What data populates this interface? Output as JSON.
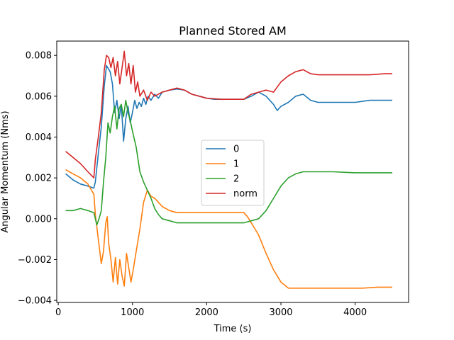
{
  "chart_data": {
    "type": "line",
    "title": "Planned Stored AM",
    "xlabel": "Time (s)",
    "ylabel": "Angular Momentum (Nms)",
    "xlim": [
      -20,
      4720
    ],
    "ylim": [
      -0.0041,
      0.0087
    ],
    "xticks": [
      0,
      1000,
      2000,
      3000,
      4000
    ],
    "xtick_labels": [
      "0",
      "1000",
      "2000",
      "3000",
      "4000"
    ],
    "yticks": [
      -0.004,
      -0.002,
      0.0,
      0.002,
      0.004,
      0.006,
      0.008
    ],
    "ytick_labels": [
      "−0.004",
      "−0.002",
      "0.000",
      "0.002",
      "0.004",
      "0.006",
      "0.008"
    ],
    "grid": false,
    "legend_position": "center",
    "series": [
      {
        "name": "0",
        "color": "#1f77b4",
        "points": [
          [
            100,
            0.0022
          ],
          [
            200,
            0.0019
          ],
          [
            300,
            0.0017
          ],
          [
            400,
            0.0016
          ],
          [
            480,
            0.0015
          ],
          [
            500,
            0.0018
          ],
          [
            540,
            0.0032
          ],
          [
            580,
            0.0045
          ],
          [
            620,
            0.0065
          ],
          [
            650,
            0.0075
          ],
          [
            700,
            0.0072
          ],
          [
            730,
            0.0066
          ],
          [
            760,
            0.0052
          ],
          [
            790,
            0.0058
          ],
          [
            820,
            0.0049
          ],
          [
            850,
            0.0056
          ],
          [
            880,
            0.0038
          ],
          [
            910,
            0.0049
          ],
          [
            940,
            0.0055
          ],
          [
            970,
            0.0047
          ],
          [
            1000,
            0.0052
          ],
          [
            1030,
            0.0058
          ],
          [
            1060,
            0.0054
          ],
          [
            1090,
            0.0057
          ],
          [
            1120,
            0.0055
          ],
          [
            1150,
            0.0059
          ],
          [
            1180,
            0.0056
          ],
          [
            1210,
            0.006
          ],
          [
            1250,
            0.0058
          ],
          [
            1300,
            0.0061
          ],
          [
            1350,
            0.0059
          ],
          [
            1400,
            0.0062
          ],
          [
            1500,
            0.0063
          ],
          [
            1600,
            0.00635
          ],
          [
            1700,
            0.0063
          ],
          [
            1800,
            0.0061
          ],
          [
            1900,
            0.006
          ],
          [
            2000,
            0.0059
          ],
          [
            2100,
            0.00585
          ],
          [
            2200,
            0.00585
          ],
          [
            2400,
            0.00585
          ],
          [
            2500,
            0.00585
          ],
          [
            2600,
            0.006
          ],
          [
            2700,
            0.0062
          ],
          [
            2800,
            0.006
          ],
          [
            2900,
            0.0056
          ],
          [
            2950,
            0.0053
          ],
          [
            3000,
            0.0055
          ],
          [
            3100,
            0.0057
          ],
          [
            3200,
            0.006
          ],
          [
            3300,
            0.0061
          ],
          [
            3400,
            0.0058
          ],
          [
            3500,
            0.0057
          ],
          [
            3700,
            0.0057
          ],
          [
            4000,
            0.0057
          ],
          [
            4200,
            0.0058
          ],
          [
            4400,
            0.0058
          ],
          [
            4500,
            0.0058
          ]
        ]
      },
      {
        "name": "1",
        "color": "#ff7f0e",
        "points": [
          [
            100,
            0.0024
          ],
          [
            200,
            0.0022
          ],
          [
            300,
            0.002
          ],
          [
            400,
            0.0017
          ],
          [
            480,
            0.0012
          ],
          [
            500,
            0.0002
          ],
          [
            540,
            -0.001
          ],
          [
            580,
            -0.0022
          ],
          [
            610,
            -0.0016
          ],
          [
            640,
            -0.0002
          ],
          [
            660,
            0.0001
          ],
          [
            680,
            -0.0012
          ],
          [
            710,
            -0.002
          ],
          [
            740,
            -0.0031
          ],
          [
            770,
            -0.0019
          ],
          [
            800,
            -0.0032
          ],
          [
            830,
            -0.002
          ],
          [
            860,
            -0.0028
          ],
          [
            890,
            -0.0033
          ],
          [
            920,
            -0.0017
          ],
          [
            950,
            -0.0024
          ],
          [
            980,
            -0.0031
          ],
          [
            1010,
            -0.0025
          ],
          [
            1050,
            -0.0016
          ],
          [
            1100,
            -0.0005
          ],
          [
            1150,
            0.0008
          ],
          [
            1200,
            0.0014
          ],
          [
            1250,
            0.0011
          ],
          [
            1300,
            0.001
          ],
          [
            1350,
            0.0008
          ],
          [
            1400,
            0.0006
          ],
          [
            1450,
            0.0005
          ],
          [
            1500,
            0.0004
          ],
          [
            1600,
            0.0003
          ],
          [
            1800,
            0.0003
          ],
          [
            2000,
            0.0003
          ],
          [
            2200,
            0.0003
          ],
          [
            2400,
            0.0003
          ],
          [
            2500,
            0.0003
          ],
          [
            2550,
            0.0001
          ],
          [
            2600,
            -0.0002
          ],
          [
            2700,
            -0.0008
          ],
          [
            2800,
            -0.0017
          ],
          [
            2900,
            -0.0025
          ],
          [
            3000,
            -0.0031
          ],
          [
            3100,
            -0.0034
          ],
          [
            3200,
            -0.0034
          ],
          [
            3500,
            -0.0034
          ],
          [
            3800,
            -0.0034
          ],
          [
            4100,
            -0.0034
          ],
          [
            4300,
            -0.00335
          ],
          [
            4500,
            -0.00335
          ]
        ]
      },
      {
        "name": "2",
        "color": "#2ca02c",
        "points": [
          [
            100,
            0.0004
          ],
          [
            200,
            0.0004
          ],
          [
            300,
            0.0005
          ],
          [
            400,
            0.0004
          ],
          [
            480,
            0.0003
          ],
          [
            500,
            0.0
          ],
          [
            520,
            -0.0003
          ],
          [
            550,
            0.0
          ],
          [
            580,
            0.0004
          ],
          [
            610,
            0.0018
          ],
          [
            640,
            0.003
          ],
          [
            670,
            0.0047
          ],
          [
            700,
            0.0042
          ],
          [
            730,
            0.005
          ],
          [
            760,
            0.0055
          ],
          [
            790,
            0.0044
          ],
          [
            820,
            0.0054
          ],
          [
            850,
            0.0056
          ],
          [
            880,
            0.005
          ],
          [
            910,
            0.0058
          ],
          [
            940,
            0.0052
          ],
          [
            970,
            0.0048
          ],
          [
            1000,
            0.0043
          ],
          [
            1050,
            0.0035
          ],
          [
            1100,
            0.0023
          ],
          [
            1150,
            0.0018
          ],
          [
            1200,
            0.0014
          ],
          [
            1250,
            0.001
          ],
          [
            1300,
            0.0005
          ],
          [
            1350,
            0.0002
          ],
          [
            1400,
            0.0
          ],
          [
            1500,
            -0.0001
          ],
          [
            1600,
            -0.0002
          ],
          [
            1800,
            -0.0002
          ],
          [
            2000,
            -0.0002
          ],
          [
            2200,
            -0.0002
          ],
          [
            2400,
            -0.0002
          ],
          [
            2500,
            -0.0002
          ],
          [
            2600,
            -0.0001
          ],
          [
            2700,
            0.0
          ],
          [
            2800,
            0.0004
          ],
          [
            2900,
            0.001
          ],
          [
            3000,
            0.0016
          ],
          [
            3100,
            0.002
          ],
          [
            3200,
            0.0022
          ],
          [
            3300,
            0.0023
          ],
          [
            3500,
            0.0023
          ],
          [
            3700,
            0.0023
          ],
          [
            4000,
            0.00225
          ],
          [
            4200,
            0.00225
          ],
          [
            4400,
            0.00225
          ],
          [
            4500,
            0.00225
          ]
        ]
      },
      {
        "name": "norm",
        "color": "#d62728",
        "points": [
          [
            100,
            0.0033
          ],
          [
            200,
            0.003
          ],
          [
            300,
            0.0027
          ],
          [
            400,
            0.0023
          ],
          [
            480,
            0.002
          ],
          [
            500,
            0.0029
          ],
          [
            540,
            0.004
          ],
          [
            580,
            0.0052
          ],
          [
            620,
            0.0073
          ],
          [
            650,
            0.008
          ],
          [
            680,
            0.0079
          ],
          [
            710,
            0.0074
          ],
          [
            740,
            0.0079
          ],
          [
            770,
            0.007
          ],
          [
            800,
            0.0077
          ],
          [
            830,
            0.0066
          ],
          [
            860,
            0.0074
          ],
          [
            890,
            0.0082
          ],
          [
            920,
            0.007
          ],
          [
            950,
            0.0076
          ],
          [
            980,
            0.0066
          ],
          [
            1010,
            0.0075
          ],
          [
            1040,
            0.0062
          ],
          [
            1070,
            0.0067
          ],
          [
            1100,
            0.006
          ],
          [
            1150,
            0.0063
          ],
          [
            1200,
            0.0058
          ],
          [
            1250,
            0.0062
          ],
          [
            1300,
            0.006
          ],
          [
            1400,
            0.0062
          ],
          [
            1500,
            0.0063
          ],
          [
            1600,
            0.0064
          ],
          [
            1700,
            0.0063
          ],
          [
            1800,
            0.0061
          ],
          [
            1900,
            0.006
          ],
          [
            2000,
            0.0059
          ],
          [
            2200,
            0.00585
          ],
          [
            2400,
            0.00585
          ],
          [
            2500,
            0.00585
          ],
          [
            2600,
            0.0061
          ],
          [
            2700,
            0.0062
          ],
          [
            2800,
            0.0063
          ],
          [
            2900,
            0.0062
          ],
          [
            3000,
            0.0067
          ],
          [
            3100,
            0.007
          ],
          [
            3200,
            0.0072
          ],
          [
            3300,
            0.0073
          ],
          [
            3400,
            0.0071
          ],
          [
            3500,
            0.00705
          ],
          [
            3700,
            0.00705
          ],
          [
            4000,
            0.00705
          ],
          [
            4200,
            0.00705
          ],
          [
            4400,
            0.0071
          ],
          [
            4500,
            0.0071
          ]
        ]
      }
    ]
  }
}
